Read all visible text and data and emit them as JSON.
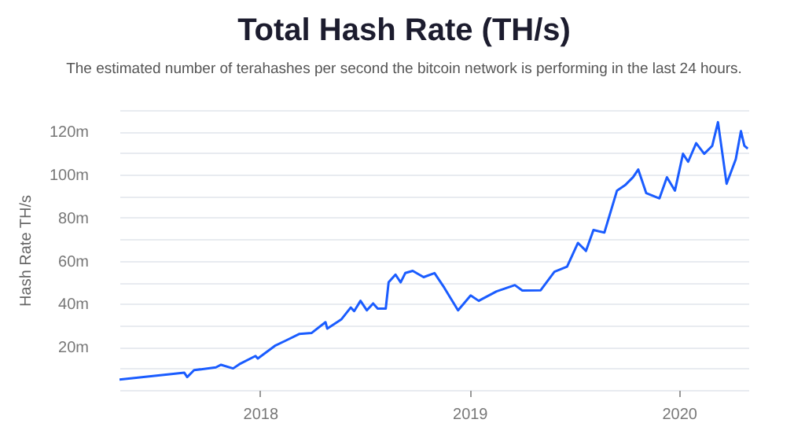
{
  "chart_data": {
    "type": "line",
    "title": "Total Hash Rate (TH/s)",
    "subtitle": "The estimated number of terahashes per second the bitcoin network is performing in the last 24 hours.",
    "ylabel": "Hash Rate TH/s",
    "x": [
      "2017-05-01",
      "2017-08-22",
      "2017-08-27",
      "2017-09-08",
      "2017-10-16",
      "2017-10-25",
      "2017-11-15",
      "2017-11-26",
      "2017-12-24",
      "2017-12-28",
      "2018-01-28",
      "2018-02-16",
      "2018-03-10",
      "2018-04-01",
      "2018-04-25",
      "2018-04-28",
      "2018-05-23",
      "2018-06-08",
      "2018-06-14",
      "2018-06-25",
      "2018-07-06",
      "2018-07-17",
      "2018-07-25",
      "2018-08-08",
      "2018-08-13",
      "2018-08-25",
      "2018-09-03",
      "2018-09-11",
      "2018-09-24",
      "2018-10-13",
      "2018-11-01",
      "2018-11-18",
      "2018-12-12",
      "2019-01-03",
      "2019-01-17",
      "2019-02-17",
      "2019-03-21",
      "2019-04-03",
      "2019-05-05",
      "2019-05-29",
      "2019-06-20",
      "2019-07-09",
      "2019-07-23",
      "2019-08-05",
      "2019-08-24",
      "2019-09-15",
      "2019-09-29",
      "2019-10-13",
      "2019-10-22",
      "2019-11-05",
      "2019-11-28",
      "2019-12-11",
      "2019-12-25",
      "2020-01-08",
      "2020-01-17",
      "2020-01-31",
      "2020-02-14",
      "2020-02-28",
      "2020-03-09",
      "2020-03-24",
      "2020-04-09",
      "2020-04-18",
      "2020-04-24",
      "2020-04-30"
    ],
    "series": [
      {
        "color": "#1a5cff",
        "values": [
          4.8,
          8,
          6,
          9.2,
          10.5,
          11.7,
          10,
          12,
          15.8,
          14.6,
          20.7,
          23.1,
          26,
          26.5,
          31.5,
          28.5,
          32.9,
          38.3,
          36.6,
          41.4,
          37,
          40.2,
          37.8,
          37.8,
          50,
          53.6,
          50,
          54.3,
          55.3,
          52.4,
          54.3,
          47.5,
          37,
          43.9,
          41.4,
          45.8,
          48.7,
          46.2,
          46.3,
          54.9,
          57.3,
          68.3,
          64.6,
          74.3,
          73.1,
          92.6,
          95.1,
          98.8,
          102.4,
          91.4,
          89,
          98.8,
          92.6,
          109.7,
          106,
          114.6,
          109.7,
          113.4,
          124.4,
          95.8,
          107.2,
          120.2,
          113.4,
          112.1
        ]
      }
    ],
    "xlim": [
      "2017-05-01",
      "2020-05-01"
    ],
    "xticks": [
      "2018",
      "2019",
      "2020"
    ],
    "ylim": [
      0,
      130
    ],
    "yticks": [
      {
        "value": 0,
        "label": null
      },
      {
        "value": 10,
        "label": null
      },
      {
        "value": 20,
        "label": "20m"
      },
      {
        "value": 30,
        "label": null
      },
      {
        "value": 40,
        "label": "40m"
      },
      {
        "value": 50,
        "label": null
      },
      {
        "value": 60,
        "label": "60m"
      },
      {
        "value": 70,
        "label": null
      },
      {
        "value": 80,
        "label": "80m"
      },
      {
        "value": 90,
        "label": null
      },
      {
        "value": 100,
        "label": "100m"
      },
      {
        "value": 110,
        "label": null
      },
      {
        "value": 120,
        "label": "120m"
      },
      {
        "value": 130,
        "label": null
      }
    ],
    "grid": "y"
  }
}
